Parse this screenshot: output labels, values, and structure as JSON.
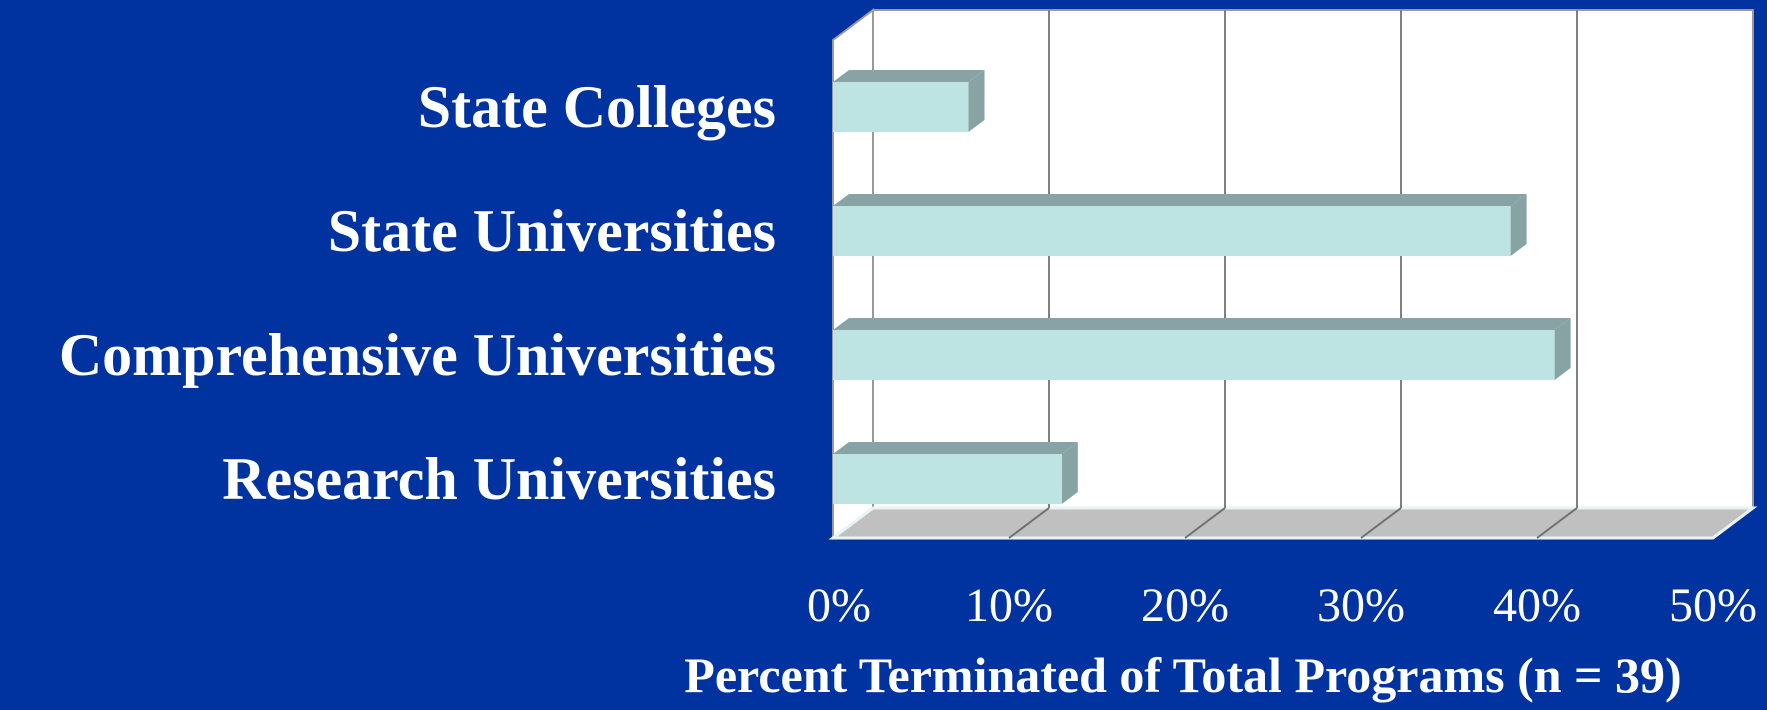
{
  "chart_data": {
    "type": "bar",
    "orientation": "horizontal",
    "style": "3d",
    "categories": [
      "Research Universities",
      "Comprehensive Universities",
      "State Universities",
      "State Colleges"
    ],
    "values": [
      13,
      41,
      38.5,
      7.7
    ],
    "xlabel": "Percent Terminated of Total Programs (n = 39)",
    "ylabel": "",
    "xlim": [
      0,
      50
    ],
    "xticks": [
      "0%",
      "10%",
      "20%",
      "30%",
      "40%",
      "50%"
    ],
    "grid": true,
    "colors": {
      "background": "#0033a0",
      "plot_area": "#ffffff",
      "floor": "#c0c0c0",
      "bar_front": "#bde3e3",
      "bar_side": "#88a3a3",
      "gridline": "#808080",
      "text": "#ffffff"
    }
  }
}
